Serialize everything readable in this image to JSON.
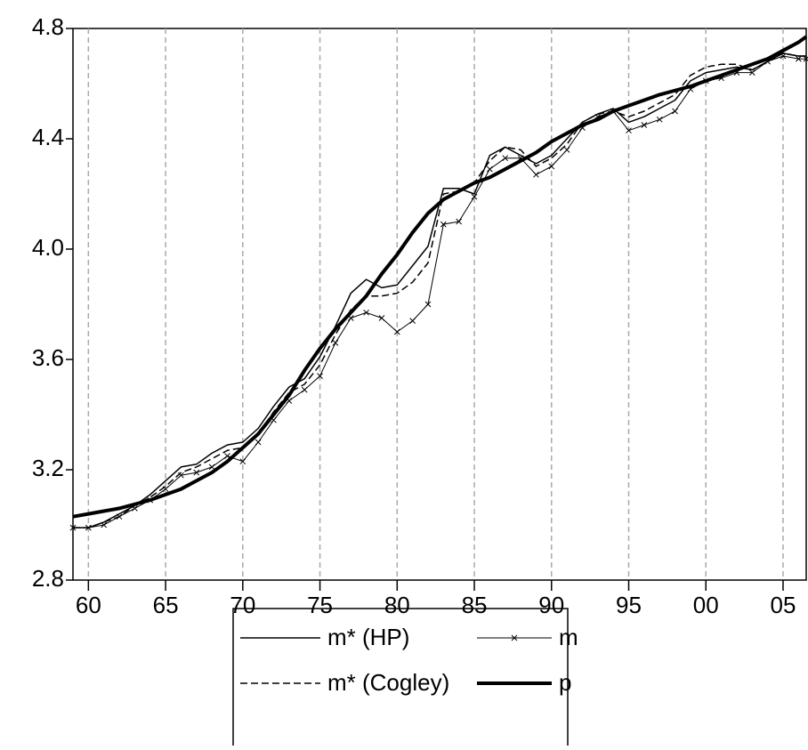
{
  "chart_data": {
    "type": "line",
    "x": [
      1959,
      1960,
      1961,
      1962,
      1963,
      1964,
      1965,
      1966,
      1967,
      1968,
      1969,
      1970,
      1971,
      1972,
      1973,
      1974,
      1975,
      1976,
      1977,
      1978,
      1979,
      1980,
      1981,
      1982,
      1983,
      1984,
      1985,
      1986,
      1987,
      1988,
      1989,
      1990,
      1991,
      1992,
      1993,
      1994,
      1995,
      1996,
      1997,
      1998,
      1999,
      2000,
      2001,
      2002,
      2003,
      2004,
      2005,
      2006,
      2006.5
    ],
    "series": [
      {
        "name": "m* (HP)",
        "color": "#000000",
        "line_style": "solid",
        "line_width": 1.5,
        "values": [
          2.99,
          2.99,
          3.01,
          3.04,
          3.07,
          3.11,
          3.16,
          3.21,
          3.22,
          3.26,
          3.29,
          3.3,
          3.35,
          3.43,
          3.5,
          3.53,
          3.61,
          3.72,
          3.84,
          3.89,
          3.86,
          3.87,
          3.94,
          4.01,
          4.22,
          4.22,
          4.2,
          4.34,
          4.37,
          4.34,
          4.31,
          4.34,
          4.4,
          4.46,
          4.49,
          4.51,
          4.46,
          4.48,
          4.51,
          4.54,
          4.61,
          4.64,
          4.65,
          4.66,
          4.65,
          4.68,
          4.71,
          4.7,
          4.7
        ]
      },
      {
        "name": "m* (Cogley)",
        "color": "#000000",
        "line_style": "dashed",
        "line_width": 1.5,
        "values": [
          2.99,
          2.99,
          3.01,
          3.03,
          3.07,
          3.1,
          3.14,
          3.19,
          3.21,
          3.24,
          3.27,
          3.28,
          3.33,
          3.41,
          3.48,
          3.51,
          3.58,
          3.69,
          3.78,
          3.83,
          3.83,
          3.84,
          3.88,
          3.95,
          4.2,
          4.21,
          4.24,
          4.32,
          4.37,
          4.36,
          4.3,
          4.33,
          4.38,
          4.46,
          4.49,
          4.5,
          4.48,
          4.5,
          4.53,
          4.56,
          4.63,
          4.66,
          4.67,
          4.67,
          4.65,
          4.68,
          4.71,
          4.7,
          4.7
        ]
      },
      {
        "name": "m",
        "color": "#000000",
        "line_style": "solid",
        "line_width": 1,
        "marker": "x",
        "values": [
          2.99,
          2.99,
          3.0,
          3.03,
          3.06,
          3.09,
          3.13,
          3.18,
          3.19,
          3.21,
          3.25,
          3.23,
          3.3,
          3.38,
          3.45,
          3.49,
          3.54,
          3.66,
          3.75,
          3.77,
          3.75,
          3.7,
          3.74,
          3.8,
          4.09,
          4.1,
          4.19,
          4.29,
          4.33,
          4.33,
          4.27,
          4.3,
          4.36,
          4.44,
          4.48,
          4.5,
          4.43,
          4.45,
          4.47,
          4.5,
          4.58,
          4.61,
          4.62,
          4.64,
          4.64,
          4.68,
          4.7,
          4.69,
          4.69
        ]
      },
      {
        "name": "p",
        "color": "#000000",
        "line_style": "solid",
        "line_width": 4,
        "values": [
          3.03,
          3.04,
          3.05,
          3.06,
          3.075,
          3.09,
          3.11,
          3.13,
          3.16,
          3.19,
          3.23,
          3.28,
          3.33,
          3.4,
          3.47,
          3.56,
          3.64,
          3.71,
          3.77,
          3.83,
          3.91,
          3.98,
          4.06,
          4.13,
          4.18,
          4.21,
          4.24,
          4.26,
          4.29,
          4.32,
          4.35,
          4.39,
          4.42,
          4.45,
          4.47,
          4.5,
          4.52,
          4.54,
          4.56,
          4.575,
          4.59,
          4.61,
          4.63,
          4.65,
          4.67,
          4.69,
          4.72,
          4.75,
          4.77
        ]
      }
    ],
    "xlim": [
      1959,
      2006.5
    ],
    "xticks": [
      {
        "value": 1960,
        "label": "60"
      },
      {
        "value": 1965,
        "label": "65"
      },
      {
        "value": 1970,
        "label": "70"
      },
      {
        "value": 1975,
        "label": "75"
      },
      {
        "value": 1980,
        "label": "80"
      },
      {
        "value": 1985,
        "label": "85"
      },
      {
        "value": 1990,
        "label": "90"
      },
      {
        "value": 1995,
        "label": "95"
      },
      {
        "value": 2000,
        "label": "00"
      },
      {
        "value": 2005,
        "label": "05"
      }
    ],
    "ylim": [
      2.8,
      4.8
    ],
    "yticks": [
      2.8,
      3.2,
      3.6,
      {
        "value": 4,
        "label": "4.0"
      },
      4.4,
      4.8
    ],
    "xgrid": true,
    "legend": "bottom"
  }
}
